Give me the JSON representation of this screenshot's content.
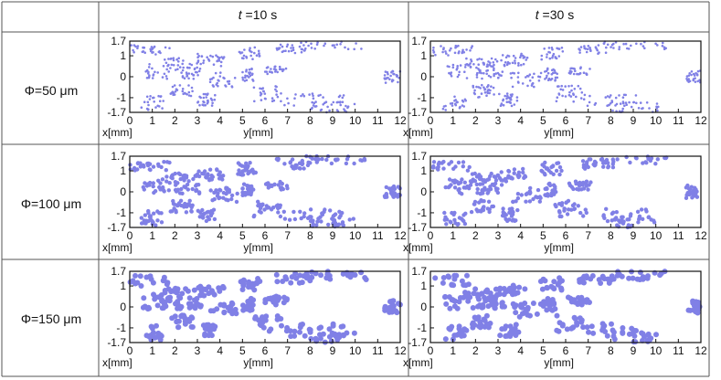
{
  "table": {
    "column_headers": [
      {
        "var": "t",
        "text": " =10 s"
      },
      {
        "var": "t",
        "text": " =30 s"
      }
    ],
    "row_headers": [
      "Φ=50 μm",
      "Φ=100 μm",
      "Φ=150 μm"
    ]
  },
  "colors": {
    "particle": "#8080e6",
    "grid": "#555555",
    "frame": "#111111"
  },
  "chart_data": {
    "type": "scatter",
    "xlabel": "x[mm]",
    "ylabel_inline": "y[mm]",
    "xlim": [
      0,
      12
    ],
    "ylim": [
      -1.7,
      1.7
    ],
    "xticks": [
      "0",
      "1",
      "2",
      "3",
      "4",
      "5",
      "6",
      "7",
      "8",
      "9",
      "10",
      "11",
      "12"
    ],
    "yticks": [
      "1.7",
      "1",
      "0",
      "-1",
      "-1.7"
    ],
    "panels": [
      {
        "diameter_um": 50,
        "time_s": 10,
        "marker_size": 1.3
      },
      {
        "diameter_um": 50,
        "time_s": 30,
        "marker_size": 1.3
      },
      {
        "diameter_um": 100,
        "time_s": 10,
        "marker_size": 2.2
      },
      {
        "diameter_um": 100,
        "time_s": 30,
        "marker_size": 2.2
      },
      {
        "diameter_um": 150,
        "time_s": 10,
        "marker_size": 3.0
      },
      {
        "diameter_um": 150,
        "time_s": 30,
        "marker_size": 3.0
      }
    ],
    "bands": [
      {
        "x": [
          0,
          1.8
        ],
        "y": [
          1.0,
          1.5
        ]
      },
      {
        "x": [
          1.5,
          3.0
        ],
        "y": [
          0.4,
          0.9
        ]
      },
      {
        "x": [
          2.0,
          3.2
        ],
        "y": [
          -0.1,
          0.4
        ]
      },
      {
        "x": [
          0.6,
          1.8
        ],
        "y": [
          -0.1,
          0.6
        ]
      },
      {
        "x": [
          1.8,
          2.8
        ],
        "y": [
          -1.0,
          -0.4
        ]
      },
      {
        "x": [
          3.0,
          4.2
        ],
        "y": [
          0.5,
          1.1
        ]
      },
      {
        "x": [
          3.5,
          4.8
        ],
        "y": [
          -0.5,
          0.2
        ]
      },
      {
        "x": [
          4.8,
          5.8
        ],
        "y": [
          0.8,
          1.4
        ]
      },
      {
        "x": [
          5.5,
          6.8
        ],
        "y": [
          -1.2,
          -0.4
        ]
      },
      {
        "x": [
          6.5,
          8.0
        ],
        "y": [
          1.1,
          1.6
        ]
      },
      {
        "x": [
          6.8,
          9.5
        ],
        "y": [
          -1.4,
          -0.8
        ]
      },
      {
        "x": [
          7.5,
          10.5
        ],
        "y": [
          1.3,
          1.7
        ]
      },
      {
        "x": [
          8.0,
          10.0
        ],
        "y": [
          -1.7,
          -1.2
        ]
      },
      {
        "x": [
          6.0,
          7.0
        ],
        "y": [
          0.1,
          0.5
        ]
      },
      {
        "x": [
          0.5,
          1.5
        ],
        "y": [
          -1.6,
          -0.9
        ]
      },
      {
        "x": [
          11.3,
          12.0
        ],
        "y": [
          -0.3,
          0.3
        ]
      },
      {
        "x": [
          5.0,
          5.5
        ],
        "y": [
          -0.2,
          0.4
        ]
      },
      {
        "x": [
          3.0,
          3.8
        ],
        "y": [
          -1.4,
          -0.8
        ]
      }
    ]
  }
}
